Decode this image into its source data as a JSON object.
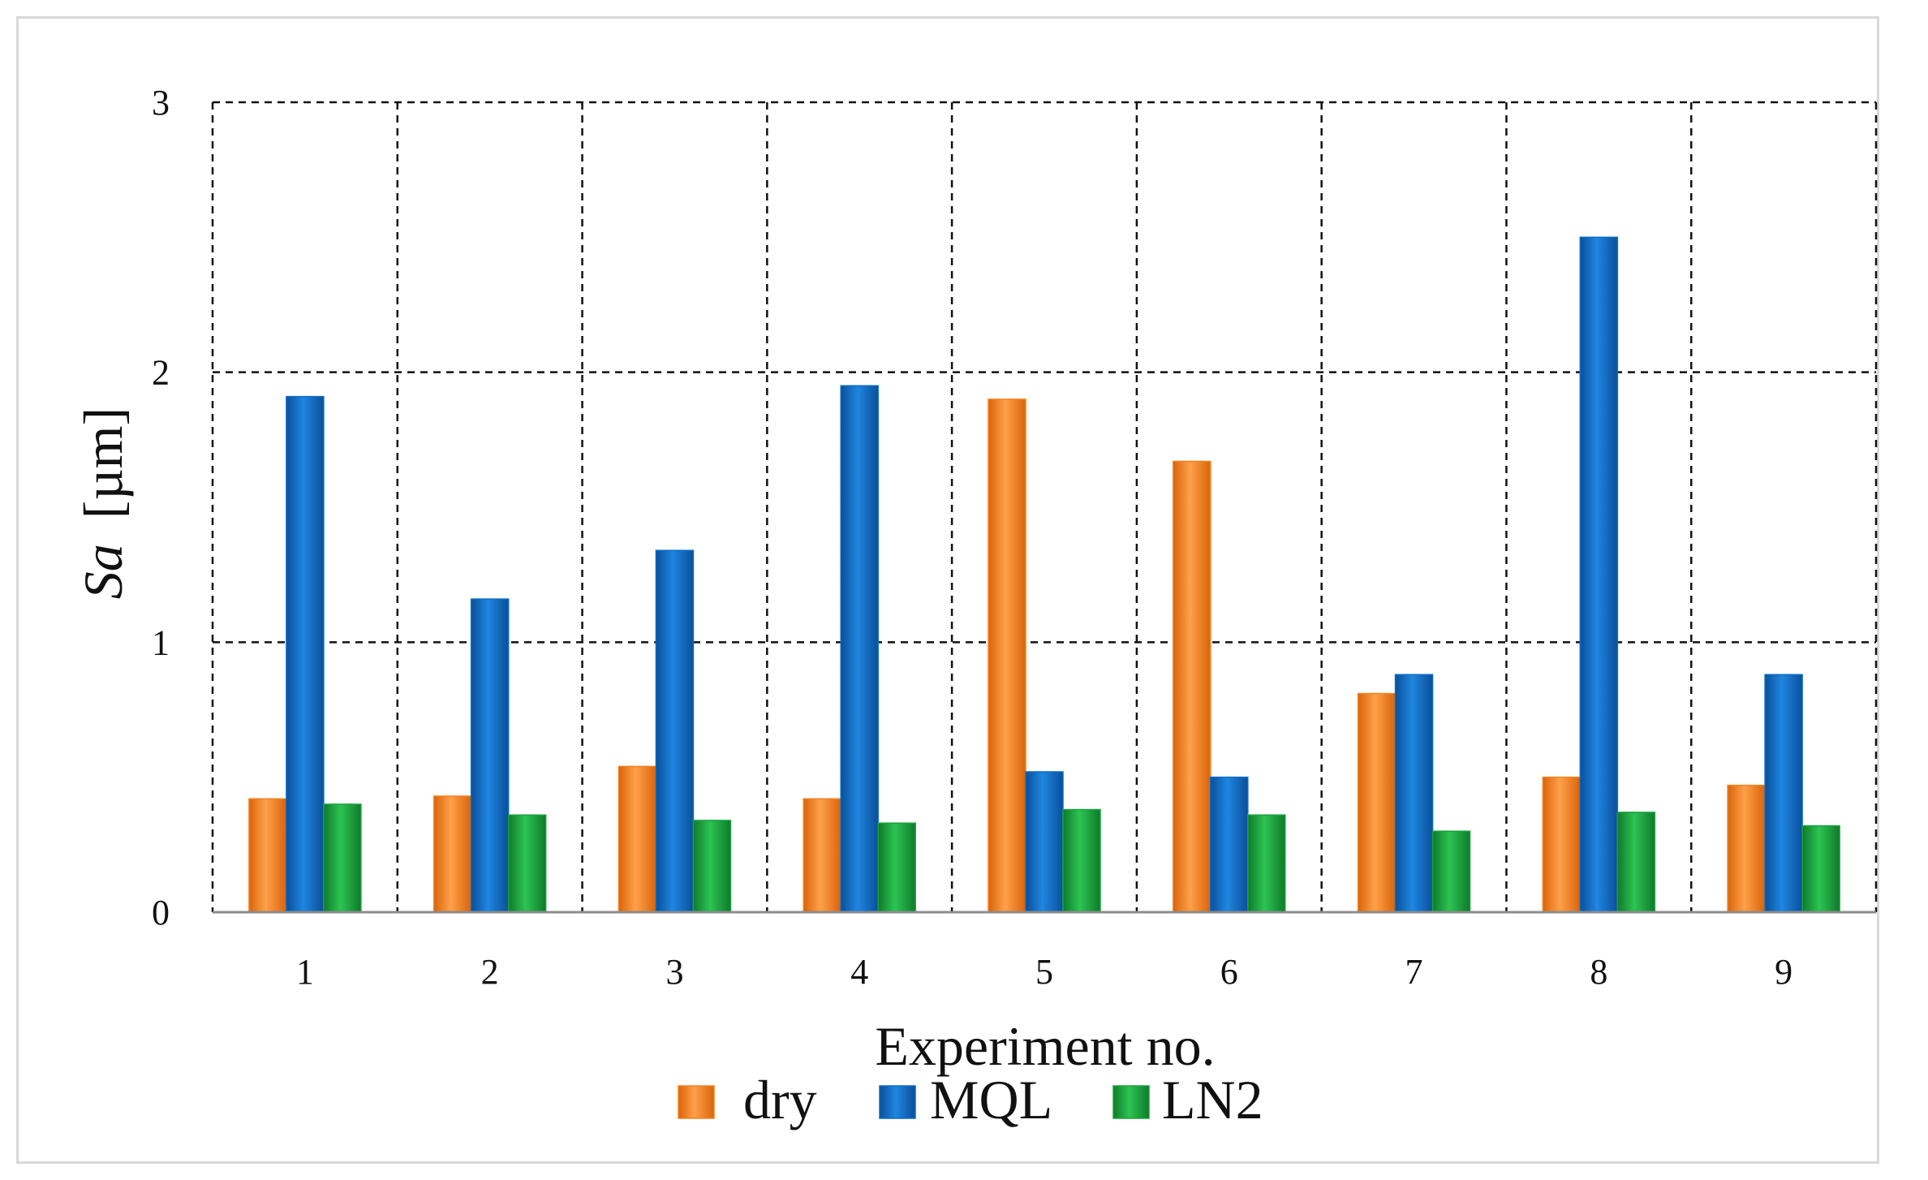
{
  "chart_data": {
    "type": "bar",
    "title": "",
    "xlabel": "Experiment no.",
    "ylabel_italic": "Sa",
    "ylabel_unit": "[µm]",
    "ylim": [
      0,
      3
    ],
    "yticks": [
      0,
      1,
      2,
      3
    ],
    "grid": true,
    "legend_position": "bottom",
    "categories": [
      "1",
      "2",
      "3",
      "4",
      "5",
      "6",
      "7",
      "8",
      "9"
    ],
    "series": [
      {
        "name": "dry",
        "color": "#f5821f",
        "values": [
          0.42,
          0.43,
          0.54,
          0.42,
          1.9,
          1.67,
          0.81,
          0.5,
          0.47
        ]
      },
      {
        "name": "MQL",
        "color": "#0b6cc5",
        "values": [
          1.91,
          1.16,
          1.34,
          1.95,
          0.52,
          0.5,
          0.88,
          2.5,
          0.88
        ]
      },
      {
        "name": "LN2",
        "color": "#18a33c",
        "values": [
          0.4,
          0.36,
          0.34,
          0.33,
          0.38,
          0.36,
          0.3,
          0.37,
          0.32
        ]
      }
    ]
  }
}
